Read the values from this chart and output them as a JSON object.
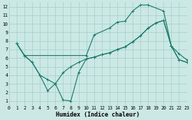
{
  "line1_x": [
    1,
    2,
    10,
    11,
    13,
    14,
    15,
    16,
    17,
    18,
    20,
    21,
    22,
    23
  ],
  "line1_y": [
    7.7,
    6.3,
    6.3,
    8.7,
    9.5,
    10.2,
    10.3,
    11.5,
    12.2,
    12.2,
    11.5,
    7.4,
    6.5,
    5.8
  ],
  "line2_x": [
    1,
    2,
    3,
    4,
    5,
    6,
    7,
    8,
    9,
    10,
    11,
    12,
    13,
    14,
    15,
    16,
    17,
    18,
    19,
    20,
    21,
    22,
    23
  ],
  "line2_y": [
    7.7,
    6.3,
    5.5,
    4.0,
    3.5,
    3.0,
    4.3,
    5.0,
    5.5,
    5.9,
    6.1,
    6.4,
    6.6,
    7.0,
    7.3,
    7.9,
    8.6,
    9.5,
    10.1,
    10.4,
    7.4,
    5.8,
    5.5
  ],
  "line3_x": [
    1,
    2,
    3,
    4,
    5,
    6,
    7,
    8,
    9,
    10,
    11,
    12,
    13,
    14,
    15,
    16,
    17,
    18,
    19,
    20,
    21,
    22,
    23
  ],
  "line3_y": [
    7.7,
    6.3,
    5.5,
    4.0,
    2.2,
    3.0,
    1.1,
    1.0,
    4.3,
    5.9,
    6.1,
    6.4,
    6.6,
    7.0,
    7.3,
    7.9,
    8.6,
    9.5,
    10.1,
    10.4,
    7.4,
    5.8,
    5.5
  ],
  "color": "#1a7a6e",
  "bg_color": "#cce8e4",
  "grid_color": "#9dcfca",
  "xlabel": "Humidex (Indice chaleur)",
  "xlim": [
    0,
    23
  ],
  "ylim": [
    0.5,
    12.5
  ],
  "xticks": [
    0,
    1,
    2,
    3,
    4,
    5,
    6,
    7,
    8,
    9,
    10,
    11,
    12,
    13,
    14,
    15,
    16,
    17,
    18,
    19,
    20,
    21,
    22,
    23
  ],
  "yticks": [
    1,
    2,
    3,
    4,
    5,
    6,
    7,
    8,
    9,
    10,
    11,
    12
  ],
  "figw": 2.75,
  "figh": 1.72,
  "dpi": 100
}
